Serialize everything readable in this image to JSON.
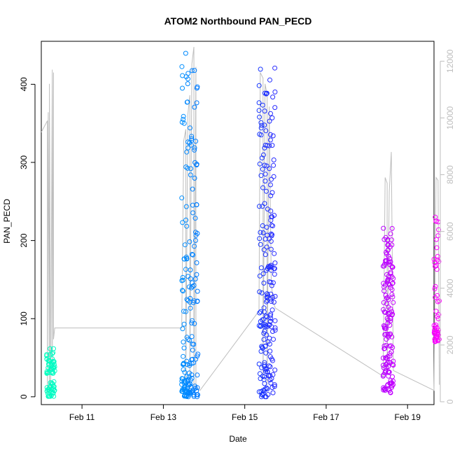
{
  "chart_data": {
    "type": "scatter",
    "title": "ATOM2 Northbound PAN_PECD",
    "xlabel": "Date",
    "ylabel": "PAN_PECD",
    "x_ticks": [
      "Feb 11",
      "Feb 13",
      "Feb 15",
      "Feb 17",
      "Feb 19"
    ],
    "y_ticks": [
      0,
      100,
      200,
      300,
      400
    ],
    "y2_ticks": [
      0,
      2000,
      4000,
      6000,
      8000,
      10000,
      12000
    ],
    "xlim_days": [
      10.0,
      19.65
    ],
    "ylim": [
      -10,
      455
    ],
    "y2lim": [
      -100,
      12700
    ],
    "grid": false,
    "legend": "none",
    "colors": {
      "axis": "#000000",
      "secondary_axis": "#bebebe",
      "altitude_line": "#bebebe",
      "point_gradient": [
        "#00ffbf",
        "#00bfff",
        "#0040ff",
        "#8000ff",
        "#ff00ff"
      ]
    },
    "point_series": [
      {
        "x_range": [
          10.13,
          10.33
        ],
        "y_ranges": [
          [
            30,
            62
          ],
          [
            0,
            20
          ]
        ],
        "count": 70
      },
      {
        "x_range": [
          13.45,
          13.85
        ],
        "y_ranges": [
          [
            0,
            35
          ],
          [
            40,
            180
          ],
          [
            180,
            445
          ]
        ],
        "count": 190
      },
      {
        "x_range": [
          15.35,
          15.75
        ],
        "y_ranges": [
          [
            0,
            90
          ],
          [
            90,
            200
          ],
          [
            200,
            422
          ]
        ],
        "count": 210
      },
      {
        "x_range": [
          18.4,
          18.65
        ],
        "y_ranges": [
          [
            5,
            100
          ],
          [
            100,
            225
          ]
        ],
        "count": 150
      },
      {
        "x_range": [
          19.65,
          19.78
        ],
        "y_ranges": [
          [
            70,
            90
          ],
          [
            90,
            245
          ]
        ],
        "count": 55
      }
    ],
    "altitude_trace": {
      "x": [
        10.0,
        10.15,
        10.15,
        10.17,
        10.2,
        10.2,
        10.23,
        10.27,
        10.27,
        10.3,
        10.3,
        10.33,
        13.45,
        13.5,
        13.55,
        13.55,
        13.6,
        13.65,
        13.65,
        13.7,
        13.75,
        13.75,
        13.8,
        13.8,
        13.9,
        15.35,
        15.38,
        15.45,
        15.45,
        15.5,
        15.55,
        15.55,
        15.6,
        15.65,
        15.7,
        15.75,
        18.4,
        18.45,
        18.5,
        18.5,
        18.55,
        18.6,
        18.65,
        19.65,
        19.7,
        19.75,
        19.78
      ],
      "y": [
        9500,
        9900,
        300,
        10200,
        400,
        11200,
        500,
        11700,
        1200,
        11600,
        2200,
        2600,
        2600,
        9200,
        9600,
        500,
        10100,
        10800,
        400,
        11900,
        12500,
        300,
        11800,
        500,
        400,
        3200,
        11600,
        11400,
        800,
        11200,
        10800,
        600,
        10400,
        4200,
        3500,
        3300,
        900,
        7900,
        7700,
        1200,
        7400,
        8800,
        1100,
        400,
        7900,
        7800,
        600
      ]
    }
  }
}
